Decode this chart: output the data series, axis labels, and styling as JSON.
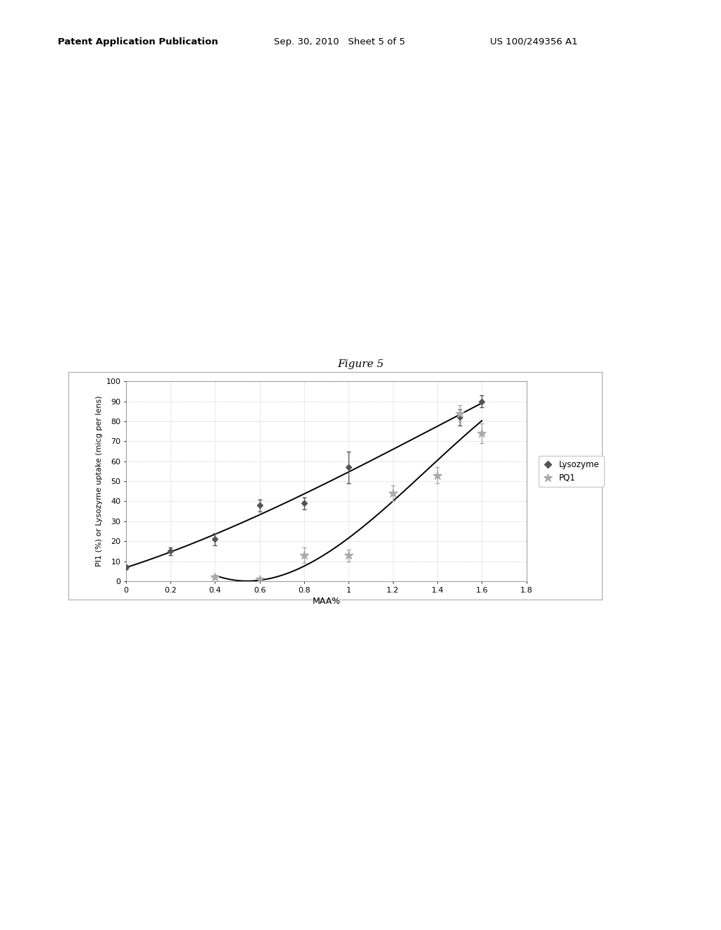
{
  "figure_title": "Figure 5",
  "xlabel": "MAA%",
  "ylabel": "PI1 (%) or Lysozyme uptake (micg per lens)",
  "xlim": [
    0,
    1.8
  ],
  "ylim": [
    0,
    100
  ],
  "xticks": [
    0,
    0.2,
    0.4,
    0.6,
    0.8,
    1.0,
    1.2,
    1.4,
    1.6,
    1.8
  ],
  "xticklabels": [
    "0",
    "0.2",
    "0.4",
    "0.6",
    "0.8",
    "1",
    "1.2",
    "1.4",
    "1.6",
    "1.8"
  ],
  "yticks": [
    0,
    10,
    20,
    30,
    40,
    50,
    60,
    70,
    80,
    90,
    100
  ],
  "lysozyme_x": [
    0,
    0.2,
    0.4,
    0.6,
    0.8,
    1.0,
    1.5,
    1.6
  ],
  "lysozyme_y": [
    7,
    15,
    21,
    38,
    39,
    57,
    82,
    90
  ],
  "lysozyme_yerr": [
    1.0,
    2.0,
    3.0,
    3.0,
    3.0,
    8.0,
    4.0,
    3.0
  ],
  "lysozyme_label": "Lysozyme",
  "pq1_x": [
    0.4,
    0.6,
    0.8,
    1.0,
    1.2,
    1.4,
    1.5,
    1.6
  ],
  "pq1_y": [
    2,
    1,
    13,
    13,
    44,
    53,
    84,
    74
  ],
  "pq1_yerr": [
    1.0,
    0.5,
    4.0,
    3.0,
    4.0,
    4.0,
    4.0,
    5.0
  ],
  "pq1_label": "PQ1",
  "marker_color_lys": "#555555",
  "marker_color_pq1": "#aaaaaa",
  "line_color": "#000000",
  "grid_color": "#bbbbbb",
  "bg_color": "#ffffff",
  "header_left": "Patent Application Publication",
  "header_mid": "Sep. 30, 2010   Sheet 5 of 5",
  "header_right": "US 100/249356 A1",
  "chart_box_color": "#cccccc"
}
